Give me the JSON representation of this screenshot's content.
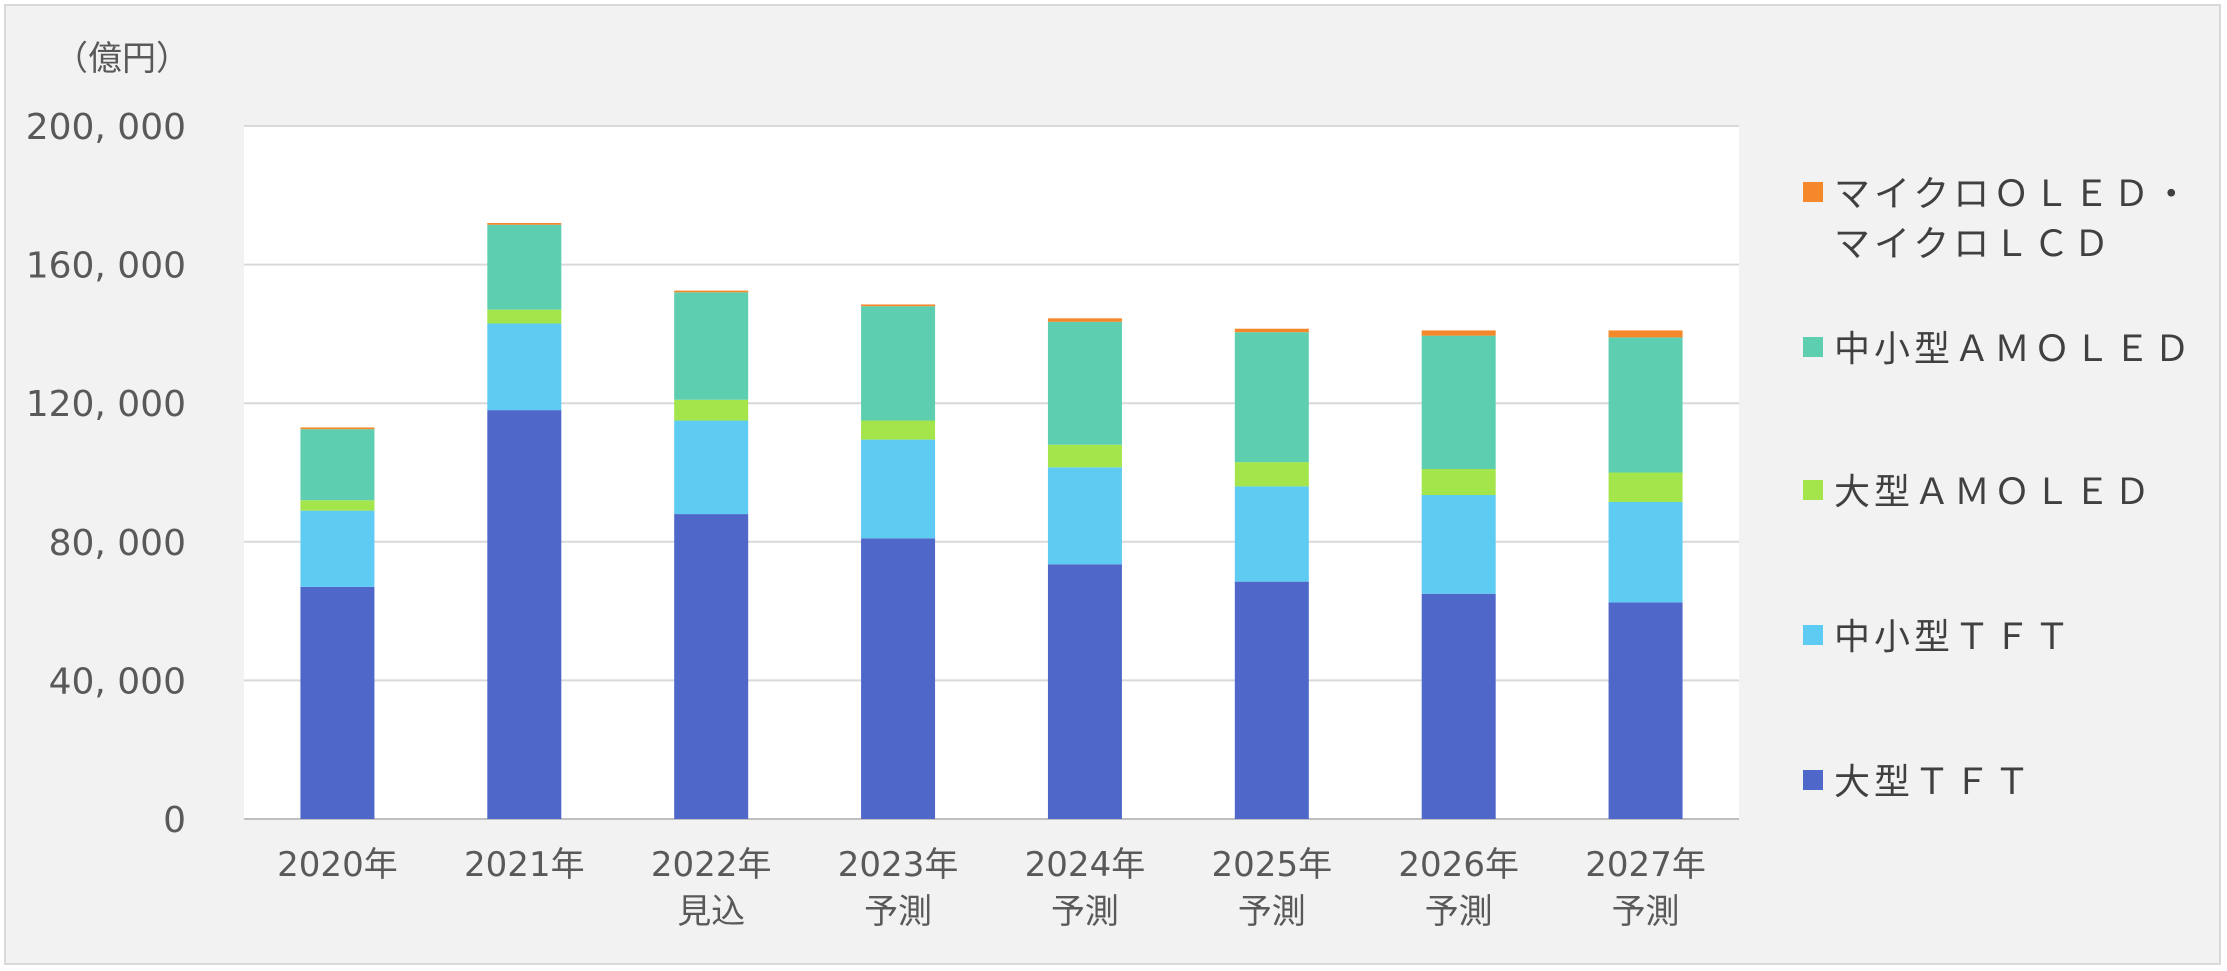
{
  "chart_data": {
    "type": "bar",
    "stacked": true,
    "unit_label": "（億円）",
    "title": "",
    "xlabel": "",
    "ylabel": "",
    "ylim": [
      0,
      200000
    ],
    "yticks": [
      0,
      40000,
      80000,
      120000,
      160000,
      200000
    ],
    "ytick_labels": [
      "0",
      "40, 000",
      "80, 000",
      "120, 000",
      "160, 000",
      "200, 000"
    ],
    "grid": true,
    "legend_position": "right",
    "categories": [
      [
        "2020年"
      ],
      [
        "2021年"
      ],
      [
        "2022年",
        "見込"
      ],
      [
        "2023年",
        "予測"
      ],
      [
        "2024年",
        "予測"
      ],
      [
        "2025年",
        "予測"
      ],
      [
        "2026年",
        "予測"
      ],
      [
        "2027年",
        "予測"
      ]
    ],
    "series": [
      {
        "name": "大型ＴＦＴ",
        "color": "#4f67c9",
        "values": [
          67000,
          118000,
          88000,
          81000,
          73500,
          68500,
          65000,
          62500
        ]
      },
      {
        "name": "中小型ＴＦＴ",
        "color": "#5ecbf2",
        "values": [
          22000,
          25000,
          27000,
          28500,
          28000,
          27500,
          28500,
          29000
        ]
      },
      {
        "name": "大型ＡＭＯＬＥＤ",
        "color": "#a4e54b",
        "values": [
          3000,
          4000,
          6000,
          5500,
          6500,
          7000,
          7500,
          8500
        ]
      },
      {
        "name": "中小型ＡＭＯＬＥＤ",
        "color": "#5dcfb0",
        "values": [
          20500,
          24500,
          31000,
          33000,
          35500,
          37500,
          38500,
          39000
        ]
      },
      {
        "name": "マイクロＯＬＥＤ・\nマイクロＬＣＤ",
        "color": "#f5882a",
        "values": [
          500,
          500,
          500,
          500,
          1000,
          1000,
          1500,
          2000
        ]
      }
    ]
  }
}
